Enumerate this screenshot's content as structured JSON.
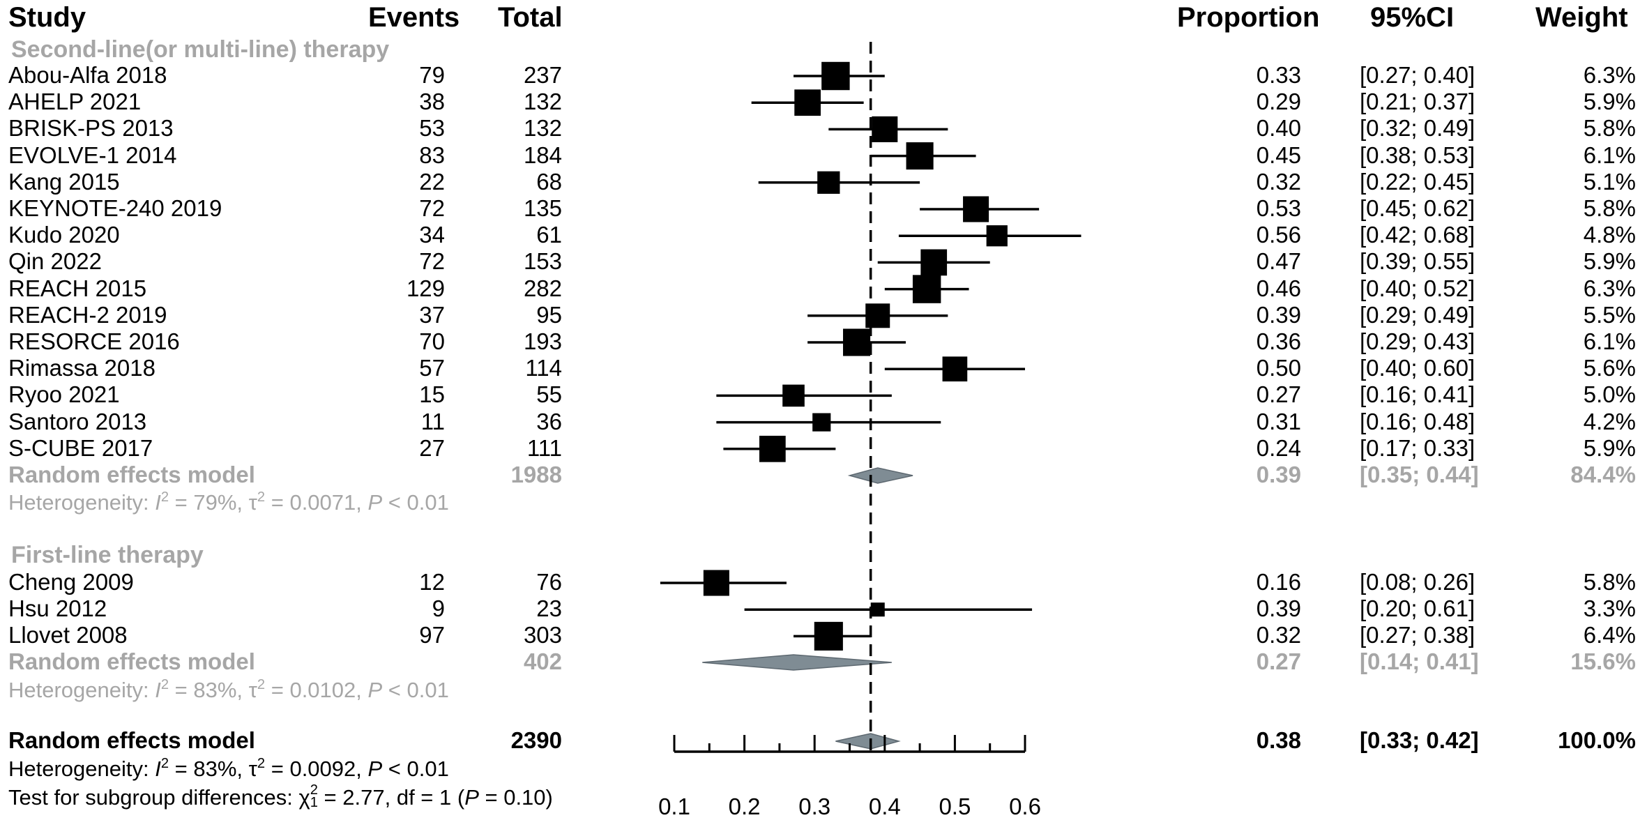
{
  "headers": {
    "study": "Study",
    "events": "Events",
    "total": "Total",
    "proportion": "Proportion",
    "ci": "95%CI",
    "weight": "Weight"
  },
  "chart_data": {
    "type": "forest",
    "x_ticks": [
      0.1,
      0.2,
      0.3,
      0.4,
      0.5,
      0.6
    ],
    "xlim": [
      0.1,
      0.6
    ],
    "reference_line": 0.38,
    "subgroups": [
      {
        "title": "Second-line(or multi-line) therapy",
        "studies": [
          {
            "study": "Abou-Alfa 2018",
            "events": "79",
            "total": "237",
            "prop": 0.33,
            "lo": 0.27,
            "hi": 0.4,
            "prop_text": "0.33",
            "ci_text": "[0.27; 0.40]",
            "weight_text": "6.3%"
          },
          {
            "study": "AHELP 2021",
            "events": "38",
            "total": "132",
            "prop": 0.29,
            "lo": 0.21,
            "hi": 0.37,
            "prop_text": "0.29",
            "ci_text": "[0.21; 0.37]",
            "weight_text": "5.9%"
          },
          {
            "study": "BRISK-PS 2013",
            "events": "53",
            "total": "132",
            "prop": 0.4,
            "lo": 0.32,
            "hi": 0.49,
            "prop_text": "0.40",
            "ci_text": "[0.32; 0.49]",
            "weight_text": "5.8%"
          },
          {
            "study": "EVOLVE-1 2014",
            "events": "83",
            "total": "184",
            "prop": 0.45,
            "lo": 0.38,
            "hi": 0.53,
            "prop_text": "0.45",
            "ci_text": "[0.38; 0.53]",
            "weight_text": "6.1%"
          },
          {
            "study": "Kang 2015",
            "events": "22",
            "total": "68",
            "prop": 0.32,
            "lo": 0.22,
            "hi": 0.45,
            "prop_text": "0.32",
            "ci_text": "[0.22; 0.45]",
            "weight_text": "5.1%"
          },
          {
            "study": "KEYNOTE-240 2019",
            "events": "72",
            "total": "135",
            "prop": 0.53,
            "lo": 0.45,
            "hi": 0.62,
            "prop_text": "0.53",
            "ci_text": "[0.45; 0.62]",
            "weight_text": "5.8%"
          },
          {
            "study": "Kudo 2020",
            "events": "34",
            "total": "61",
            "prop": 0.56,
            "lo": 0.42,
            "hi": 0.68,
            "prop_text": "0.56",
            "ci_text": "[0.42; 0.68]",
            "weight_text": "4.8%"
          },
          {
            "study": "Qin 2022",
            "events": "72",
            "total": "153",
            "prop": 0.47,
            "lo": 0.39,
            "hi": 0.55,
            "prop_text": "0.47",
            "ci_text": "[0.39; 0.55]",
            "weight_text": "5.9%"
          },
          {
            "study": "REACH 2015",
            "events": "129",
            "total": "282",
            "prop": 0.46,
            "lo": 0.4,
            "hi": 0.52,
            "prop_text": "0.46",
            "ci_text": "[0.40; 0.52]",
            "weight_text": "6.3%"
          },
          {
            "study": "REACH-2 2019",
            "events": "37",
            "total": "95",
            "prop": 0.39,
            "lo": 0.29,
            "hi": 0.49,
            "prop_text": "0.39",
            "ci_text": "[0.29; 0.49]",
            "weight_text": "5.5%"
          },
          {
            "study": "RESORCE 2016",
            "events": "70",
            "total": "193",
            "prop": 0.36,
            "lo": 0.29,
            "hi": 0.43,
            "prop_text": "0.36",
            "ci_text": "[0.29; 0.43]",
            "weight_text": "6.1%"
          },
          {
            "study": "Rimassa 2018",
            "events": "57",
            "total": "114",
            "prop": 0.5,
            "lo": 0.4,
            "hi": 0.6,
            "prop_text": "0.50",
            "ci_text": "[0.40; 0.60]",
            "weight_text": "5.6%"
          },
          {
            "study": "Ryoo 2021",
            "events": "15",
            "total": "55",
            "prop": 0.27,
            "lo": 0.16,
            "hi": 0.41,
            "prop_text": "0.27",
            "ci_text": "[0.16; 0.41]",
            "weight_text": "5.0%"
          },
          {
            "study": "Santoro 2013",
            "events": "11",
            "total": "36",
            "prop": 0.31,
            "lo": 0.16,
            "hi": 0.48,
            "prop_text": "0.31",
            "ci_text": "[0.16; 0.48]",
            "weight_text": "4.2%"
          },
          {
            "study": "S-CUBE 2017",
            "events": "27",
            "total": "111",
            "prop": 0.24,
            "lo": 0.17,
            "hi": 0.33,
            "prop_text": "0.24",
            "ci_text": "[0.17; 0.33]",
            "weight_text": "5.9%"
          }
        ],
        "pooled": {
          "label": "Random effects model",
          "total": "1988",
          "prop": 0.39,
          "lo": 0.35,
          "hi": 0.44,
          "prop_text": "0.39",
          "ci_text": "[0.35; 0.44]",
          "weight_text": "84.4%"
        },
        "heterogeneity": {
          "prefix": "Heterogeneity: ",
          "i2_label": "I",
          "i2_value": " = 79%, ",
          "tau_label": "τ",
          "tau_value": " = 0.0071, ",
          "p_label": "P",
          "p_value": " < 0.01"
        }
      },
      {
        "title": "First-line therapy",
        "studies": [
          {
            "study": "Cheng 2009",
            "events": "12",
            "total": "76",
            "prop": 0.16,
            "lo": 0.08,
            "hi": 0.26,
            "prop_text": "0.16",
            "ci_text": "[0.08; 0.26]",
            "weight_text": "5.8%"
          },
          {
            "study": "Hsu 2012",
            "events": "9",
            "total": "23",
            "prop": 0.39,
            "lo": 0.2,
            "hi": 0.61,
            "prop_text": "0.39",
            "ci_text": "[0.20; 0.61]",
            "weight_text": "3.3%"
          },
          {
            "study": "Llovet 2008",
            "events": "97",
            "total": "303",
            "prop": 0.32,
            "lo": 0.27,
            "hi": 0.38,
            "prop_text": "0.32",
            "ci_text": "[0.27; 0.38]",
            "weight_text": "6.4%"
          }
        ],
        "pooled": {
          "label": "Random effects model",
          "total": "402",
          "prop": 0.27,
          "lo": 0.14,
          "hi": 0.41,
          "prop_text": "0.27",
          "ci_text": "[0.14; 0.41]",
          "weight_text": "15.6%"
        },
        "heterogeneity": {
          "prefix": "Heterogeneity: ",
          "i2_label": "I",
          "i2_value": " = 83%, ",
          "tau_label": "τ",
          "tau_value": " = 0.0102, ",
          "p_label": "P",
          "p_value": " < 0.01"
        }
      }
    ],
    "overall": {
      "label": "Random effects model",
      "total": "2390",
      "prop": 0.38,
      "lo": 0.33,
      "hi": 0.42,
      "prop_text": "0.38",
      "ci_text": "[0.33; 0.42]",
      "weight_text": "100.0%",
      "heterogeneity": {
        "prefix": "Heterogeneity: ",
        "i2_label": "I",
        "i2_value": " = 83%, ",
        "tau_label": "τ",
        "tau_value": " = 0.0092, ",
        "p_label": "P",
        "p_value": " < 0.01"
      },
      "subgroup_test": {
        "prefix": "Test for subgroup differences: ",
        "chi_label": "χ",
        "chi_sub": "1",
        "chi_value": " = 2.77, df = 1 (",
        "p_label": "P",
        "p_value": " = 0.10)"
      }
    }
  }
}
